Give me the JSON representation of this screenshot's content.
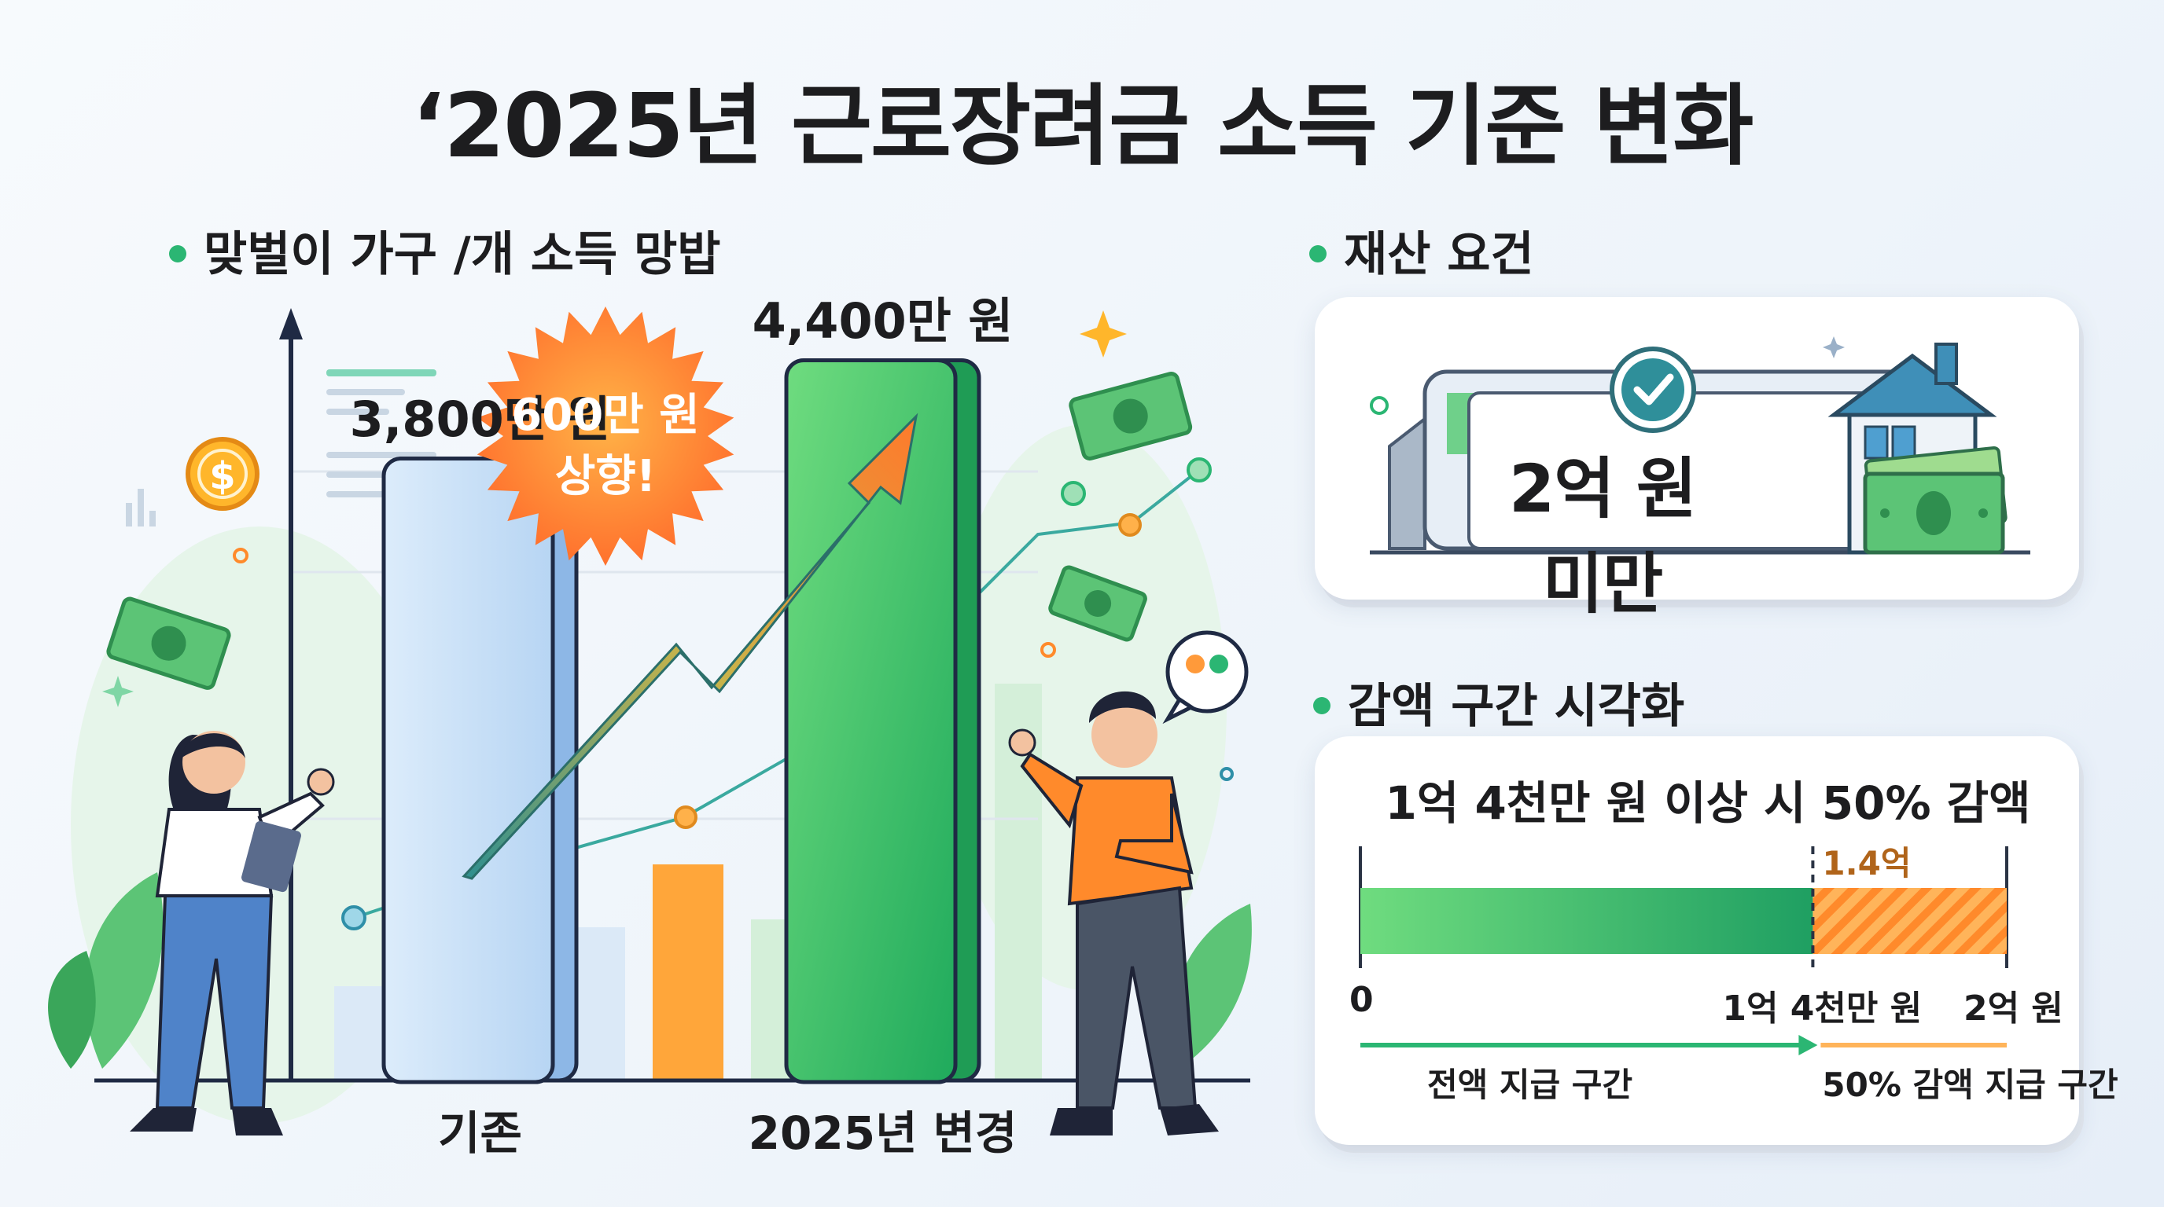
{
  "title": "‘2025년 근로장려금 소득 기준 변화",
  "income_section": {
    "label": "맞벌이 가구 /개 소득 망밥",
    "badge_line1": "600만 원",
    "badge_line2": "상향!"
  },
  "property_section": {
    "label": "재산 요건",
    "value": "2억 원 미만"
  },
  "reduction_section": {
    "label": "감액 구간 시각화",
    "headline": "1억 4천만 원 이상 시 50% 감액",
    "marker_label": "1.4억",
    "tick_start": "0",
    "tick_mid": "1억 4천만 원",
    "tick_end": "2억 원",
    "zone_full": "전액 지급 구간",
    "zone_half": "50% 감액 지급 구간",
    "threshold": 1.4,
    "max": 2.0
  },
  "chart_data": {
    "type": "bar",
    "categories": [
      "기존",
      "2025년 변경"
    ],
    "values": [
      3800,
      4400
    ],
    "value_labels": [
      "3,800만 원",
      "4,400만 원"
    ],
    "unit": "만 원",
    "colors": [
      "#bfdcf6",
      "#3cbf6a"
    ]
  },
  "colors": {
    "accent_green": "#2bb673",
    "accent_orange": "#ff8a2b",
    "bar_old": "#bfdcf6",
    "bar_new": "#3cbf6a"
  }
}
